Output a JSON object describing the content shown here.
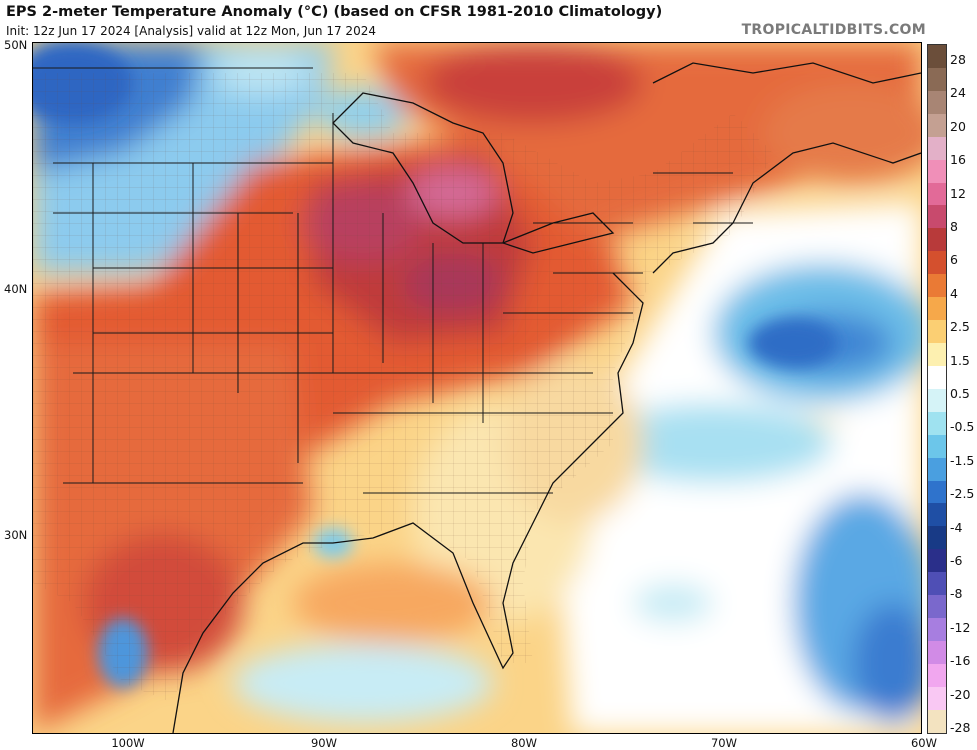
{
  "header": {
    "title": "EPS 2-meter Temperature Anomaly (°C) (based on CFSR 1981-2010 Climatology)",
    "subtitle": "Init: 12z Jun 17 2024   [Analysis]   valid at 12z Mon, Jun 17 2024",
    "brand": "TROPICALTIDBITS.COM"
  },
  "map": {
    "lat_labels": [
      "50N",
      "40N",
      "30N"
    ],
    "lon_labels": [
      "100W",
      "90W",
      "80W",
      "70W",
      "60W"
    ]
  },
  "colorbar": {
    "tick_labels": [
      "28",
      "24",
      "20",
      "16",
      "12",
      "8",
      "6",
      "4",
      "2.5",
      "1.5",
      "0.5",
      "-0.5",
      "-1.5",
      "-2.5",
      "-4",
      "-6",
      "-8",
      "-12",
      "-16",
      "-20",
      "-28"
    ],
    "colors": [
      "#6b4e3a",
      "#8a6a55",
      "#a88574",
      "#c4a092",
      "#e3b0c8",
      "#f08fb8",
      "#e26a98",
      "#c84a6d",
      "#b83a3a",
      "#d4502e",
      "#ea7a35",
      "#f6a84a",
      "#fbcf73",
      "#fdf0b0",
      "#ffffff",
      "#d5f3f7",
      "#9fe2f0",
      "#6cc6ea",
      "#4a9fe0",
      "#2f73cc",
      "#1f4fa5",
      "#183a86",
      "#2a2f8a",
      "#4f4fb5",
      "#7a68cc",
      "#a77ee0",
      "#d18be6",
      "#f1a7ef",
      "#f9c8f3",
      "#f3e3c0"
    ]
  }
}
